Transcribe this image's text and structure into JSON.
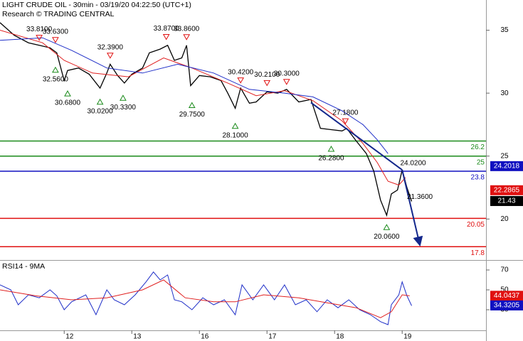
{
  "chart_data": [
    {
      "type": "line",
      "title": "LIGHT CRUDE OIL - 30min - 03/19/20 04:22:50 (UTC+1)",
      "subtitle": "Research © TRADING CENTRAL",
      "xlim": [
        0.05,
        7.24
      ],
      "ylim": [
        16.8,
        37.4
      ],
      "yticks": [
        35,
        30,
        25,
        20
      ],
      "series": [
        {
          "color": "#000000",
          "x": [
            0.05,
            0.26,
            0.47,
            0.63,
            0.79,
            0.89,
            1.0,
            1.05,
            1.21,
            1.37,
            1.53,
            1.63,
            1.68,
            1.79,
            1.89,
            2.0,
            2.16,
            2.26,
            2.42,
            2.53,
            2.63,
            2.74,
            2.81,
            2.87,
            3.0,
            3.16,
            3.32,
            3.42,
            3.53,
            3.61,
            3.74,
            3.84,
            4.0,
            4.16,
            4.29,
            4.47,
            4.65,
            4.79,
            4.95,
            5.11,
            5.18,
            5.32,
            5.47,
            5.58,
            5.68,
            5.77,
            5.84,
            5.93,
            6.0,
            6.07,
            6.14
          ],
          "values": [
            35.6,
            34.6,
            34.0,
            33.8,
            33.6,
            33.2,
            31.0,
            31.8,
            32.0,
            31.5,
            30.4,
            31.6,
            32.3,
            31.4,
            30.8,
            31.5,
            32.0,
            33.2,
            33.5,
            33.8,
            32.6,
            32.8,
            33.8,
            30.6,
            31.4,
            31.3,
            31.0,
            30.0,
            28.8,
            30.4,
            29.2,
            29.3,
            30.1,
            30.0,
            30.3,
            29.3,
            29.5,
            27.2,
            27.1,
            27.0,
            27.2,
            26.2,
            25.2,
            23.8,
            21.5,
            20.3,
            22.0,
            22.3,
            23.9,
            22.5,
            21.4
          ]
        },
        {
          "color": "#e02020",
          "x": [
            0.05,
            0.68,
            1.0,
            1.42,
            1.95,
            2.47,
            2.89,
            3.42,
            3.84,
            4.26,
            4.68,
            5.11,
            5.42,
            5.63,
            5.79,
            5.95,
            6.05
          ],
          "values": [
            35.0,
            34.0,
            32.6,
            31.6,
            31.3,
            32.8,
            32.0,
            30.8,
            29.8,
            30.2,
            29.4,
            27.8,
            26.0,
            24.5,
            23.0,
            22.7,
            23.3
          ]
        },
        {
          "color": "#1f2fc8",
          "x": [
            0.05,
            0.68,
            1.11,
            1.63,
            2.16,
            2.68,
            3.21,
            3.74,
            4.26,
            4.68,
            5.11,
            5.42,
            5.63,
            5.79
          ],
          "values": [
            34.2,
            34.4,
            33.4,
            32.0,
            31.6,
            32.3,
            31.6,
            30.3,
            30.0,
            29.7,
            28.6,
            27.5,
            26.3,
            25.2
          ]
        }
      ],
      "levels": [
        {
          "value": 26.2,
          "color": "#1a8a1a"
        },
        {
          "value": 25,
          "color": "#1a8a1a"
        },
        {
          "value": 23.8,
          "color": "#1010c0"
        },
        {
          "value": 20.05,
          "color": "#e01010"
        },
        {
          "value": 17.8,
          "color": "#e01010"
        }
      ],
      "trendlines": [
        {
          "color": "#14288c",
          "x": [
            4.65,
            6.0
          ],
          "values": [
            29.25,
            23.9
          ]
        },
        {
          "color": "#14288c",
          "x": [
            6.0,
            6.26
          ],
          "values": [
            23.9,
            17.97
          ],
          "arrow": true
        }
      ],
      "annotations": [
        {
          "x": 0.63,
          "value": 33.81,
          "label": "33.8100",
          "marker": "down"
        },
        {
          "x": 0.87,
          "value": 33.63,
          "label": "33.6300",
          "marker": "down"
        },
        {
          "x": 1.68,
          "value": 32.39,
          "label": "32.3900",
          "marker": "down"
        },
        {
          "x": 2.51,
          "value": 33.87,
          "label": "33.8700",
          "marker": "down"
        },
        {
          "x": 2.81,
          "value": 33.86,
          "label": "33.8600",
          "marker": "down"
        },
        {
          "x": 3.61,
          "value": 30.42,
          "label": "30.4200",
          "marker": "down"
        },
        {
          "x": 4.0,
          "value": 30.21,
          "label": "30.2100",
          "marker": "down"
        },
        {
          "x": 4.29,
          "value": 30.3,
          "label": "30.3000",
          "marker": "down"
        },
        {
          "x": 5.16,
          "value": 27.18,
          "label": "27.1800",
          "marker": "down"
        },
        {
          "x": 5.95,
          "value": 24.02,
          "label": "24.0200",
          "marker": "none"
        },
        {
          "x": 0.87,
          "value": 32.56,
          "label": "32.5600",
          "marker": "up"
        },
        {
          "x": 1.05,
          "value": 30.68,
          "label": "30.6800",
          "marker": "up"
        },
        {
          "x": 1.53,
          "value": 30.02,
          "label": "30.0200",
          "marker": "up"
        },
        {
          "x": 1.87,
          "value": 30.33,
          "label": "30.3300",
          "marker": "up"
        },
        {
          "x": 2.89,
          "value": 29.75,
          "label": "29.7500",
          "marker": "up"
        },
        {
          "x": 3.53,
          "value": 28.1,
          "label": "28.1000",
          "marker": "up"
        },
        {
          "x": 4.95,
          "value": 26.28,
          "label": "26.2800",
          "marker": "up"
        },
        {
          "x": 5.77,
          "value": 20.06,
          "label": "20.0600",
          "marker": "up"
        },
        {
          "x": 6.05,
          "value": 21.36,
          "label": "21.3600",
          "marker": "none"
        }
      ],
      "tags": [
        {
          "value": 24.2018,
          "color": "#1010c0"
        },
        {
          "value": 22.2865,
          "color": "#e01010"
        },
        {
          "value": 21.43,
          "color": "#000000"
        }
      ]
    },
    {
      "type": "line",
      "title": "RSI14 - 9MA",
      "xlim": [
        0.05,
        7.24
      ],
      "ylim": [
        9.3,
        79.3
      ],
      "yticks": [
        70,
        50,
        30
      ],
      "xticks": [
        {
          "value": 1,
          "label": "12"
        },
        {
          "value": 2,
          "label": "13"
        },
        {
          "value": 3,
          "label": "16"
        },
        {
          "value": 4,
          "label": "17"
        },
        {
          "value": 5,
          "label": "18"
        },
        {
          "value": 6,
          "label": "19"
        }
      ],
      "series": [
        {
          "color": "#1f2fc8",
          "x": [
            0.05,
            0.21,
            0.32,
            0.47,
            0.63,
            0.79,
            0.89,
            1.0,
            1.11,
            1.32,
            1.47,
            1.63,
            1.74,
            1.89,
            2.05,
            2.21,
            2.32,
            2.42,
            2.53,
            2.63,
            2.74,
            2.89,
            3.05,
            3.21,
            3.37,
            3.53,
            3.63,
            3.79,
            3.95,
            4.11,
            4.26,
            4.42,
            4.58,
            4.74,
            4.89,
            5.05,
            5.21,
            5.37,
            5.53,
            5.68,
            5.79,
            5.84,
            5.95,
            6.0,
            6.07,
            6.14
          ],
          "values": [
            55,
            50,
            35,
            45,
            42,
            50,
            44,
            30,
            38,
            45,
            25,
            50,
            40,
            35,
            45,
            58,
            68,
            60,
            65,
            40,
            38,
            30,
            42,
            35,
            40,
            25,
            55,
            40,
            55,
            40,
            55,
            35,
            40,
            28,
            40,
            32,
            40,
            30,
            25,
            18,
            15,
            35,
            45,
            58,
            44,
            34
          ]
        },
        {
          "color": "#e02020",
          "x": [
            0.05,
            0.58,
            1.11,
            1.63,
            2.16,
            2.47,
            2.79,
            3.21,
            3.53,
            3.95,
            4.47,
            4.89,
            5.32,
            5.68,
            5.84,
            6.0,
            6.11
          ],
          "values": [
            50,
            44,
            40,
            42,
            50,
            60,
            42,
            38,
            38,
            45,
            42,
            37,
            32,
            22,
            28,
            45,
            44
          ]
        }
      ],
      "tags": [
        {
          "value": 44.0437,
          "color": "#e01010"
        },
        {
          "value": 34.3205,
          "color": "#1010c0"
        }
      ]
    }
  ]
}
